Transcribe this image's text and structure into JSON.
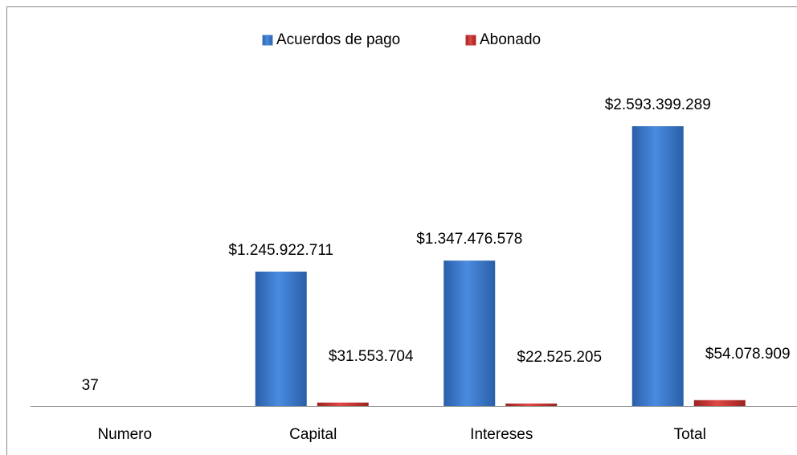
{
  "chart_data": {
    "type": "bar",
    "categories": [
      "Numero",
      "Capital",
      "Intereses",
      "Total"
    ],
    "series": [
      {
        "name": "Acuerdos de pago",
        "color": "#3d7cc9",
        "values": [
          37,
          1245922711,
          1347476578,
          2593399289
        ],
        "value_labels": [
          "37",
          "$1.245.922.711",
          "$1.347.476.578",
          "$2.593.399.289"
        ]
      },
      {
        "name": "Abonado",
        "color": "#c43431",
        "values": [
          null,
          31553704,
          22525205,
          54078909
        ],
        "value_labels": [
          null,
          "$31.553.704",
          "$22.525.205",
          "$54.078.909"
        ]
      }
    ],
    "legend": "top"
  }
}
